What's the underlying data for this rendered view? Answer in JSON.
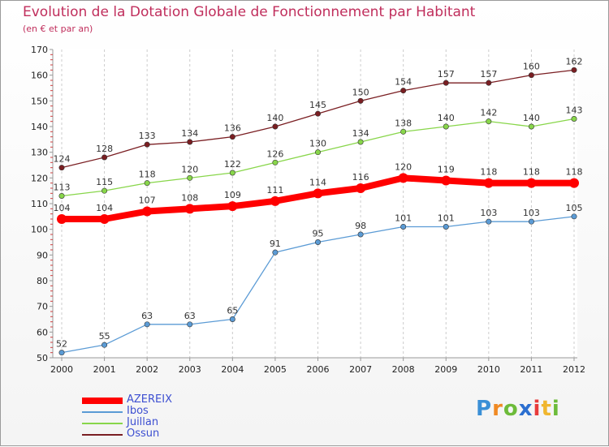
{
  "chart_data": {
    "type": "line",
    "title": "Evolution de la Dotation Globale de Fonctionnement par Habitant",
    "subtitle": "(en € et par an)",
    "xlabel": "",
    "ylabel": "",
    "ylim": [
      50,
      170
    ],
    "yticks": [
      50,
      60,
      70,
      80,
      90,
      100,
      110,
      120,
      130,
      140,
      150,
      160,
      170
    ],
    "categories": [
      "2000",
      "2001",
      "2002",
      "2003",
      "2004",
      "2005",
      "2006",
      "2007",
      "2008",
      "2009",
      "2010",
      "2011",
      "2012"
    ],
    "series": [
      {
        "name": "Ossun",
        "color": "#7a1e22",
        "values": [
          124,
          128,
          133,
          134,
          136,
          140,
          145,
          150,
          154,
          157,
          157,
          160,
          162
        ]
      },
      {
        "name": "Juillan",
        "color": "#88d64a",
        "values": [
          113,
          115,
          118,
          120,
          122,
          126,
          130,
          134,
          138,
          140,
          142,
          140,
          143
        ]
      },
      {
        "name": "Ibos",
        "color": "#5b9bd5",
        "values": [
          52,
          55,
          63,
          63,
          65,
          91,
          95,
          98,
          101,
          101,
          103,
          103,
          105
        ]
      },
      {
        "name": "AZEREIX",
        "color": "#ff0000",
        "values": [
          104,
          104,
          107,
          108,
          109,
          111,
          114,
          116,
          120,
          119,
          118,
          118,
          118
        ]
      }
    ],
    "legend": {
      "position": "bottom-left",
      "entries": [
        "AZEREIX",
        "Ibos",
        "Juillan",
        "Ossun"
      ]
    },
    "grid": {
      "vertical": true,
      "horizontal": false,
      "style": "dashed"
    }
  },
  "logo": {
    "letters": [
      "P",
      "r",
      "o",
      "x",
      "i",
      "t",
      "i"
    ]
  }
}
